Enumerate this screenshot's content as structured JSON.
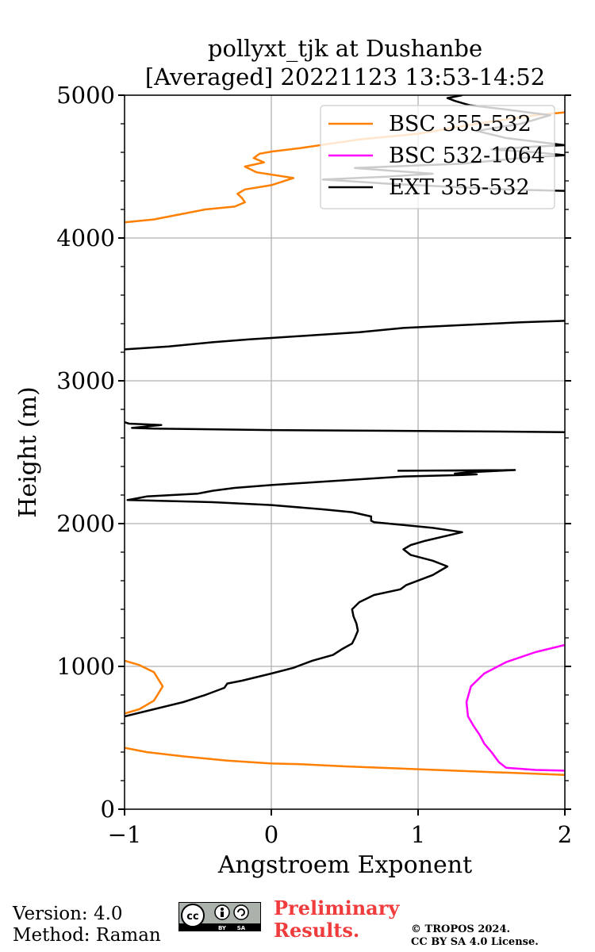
{
  "chart_data": {
    "type": "line",
    "title": [
      "pollyxt_tjk at Dushanbe",
      "[Averaged] 20221123 13:53-14:52"
    ],
    "xlabel": "Angstroem Exponent",
    "ylabel": "Height (m)",
    "xlim": [
      -1,
      2
    ],
    "ylim": [
      0,
      5000
    ],
    "xticks": [
      -1,
      0,
      1,
      2
    ],
    "xtick_labels": [
      "−1",
      "0",
      "1",
      "2"
    ],
    "yticks": [
      0,
      1000,
      2000,
      3000,
      4000,
      5000
    ],
    "ytick_labels": [
      "0",
      "1000",
      "2000",
      "3000",
      "4000",
      "5000"
    ],
    "grid": true,
    "legend_position": "top-right",
    "series": [
      {
        "name": "BSC 355-532",
        "color": "#ff8000",
        "segments": [
          [
            [
              2.0,
              240
            ],
            [
              1.5,
              260
            ],
            [
              1.0,
              280
            ],
            [
              0.5,
              300
            ],
            [
              0.2,
              315
            ],
            [
              0.0,
              320
            ],
            [
              -0.3,
              340
            ],
            [
              -0.6,
              370
            ],
            [
              -0.85,
              400
            ],
            [
              -1.0,
              430
            ]
          ],
          [
            [
              -1.0,
              670
            ],
            [
              -0.9,
              700
            ],
            [
              -0.8,
              760
            ],
            [
              -0.74,
              860
            ],
            [
              -0.8,
              960
            ],
            [
              -0.9,
              1010
            ],
            [
              -1.0,
              1040
            ]
          ],
          [
            [
              -1.0,
              4110
            ],
            [
              -0.8,
              4130
            ],
            [
              -0.6,
              4170
            ],
            [
              -0.45,
              4200
            ],
            [
              -0.25,
              4220
            ],
            [
              -0.18,
              4250
            ],
            [
              -0.2,
              4280
            ],
            [
              -0.23,
              4310
            ],
            [
              -0.18,
              4340
            ],
            [
              0.0,
              4370
            ],
            [
              0.15,
              4420
            ],
            [
              -0.1,
              4460
            ],
            [
              -0.18,
              4500
            ],
            [
              -0.05,
              4530
            ],
            [
              -0.12,
              4560
            ],
            [
              -0.08,
              4590
            ],
            [
              0.0,
              4605
            ],
            [
              0.2,
              4630
            ],
            [
              0.4,
              4660
            ],
            [
              0.6,
              4690
            ],
            [
              1.0,
              4730
            ],
            [
              1.4,
              4800
            ],
            [
              1.8,
              4860
            ],
            [
              2.0,
              4880
            ]
          ]
        ]
      },
      {
        "name": "BSC 532-1064",
        "color": "#ff00ff",
        "segments": [
          [
            [
              2.0,
              270
            ],
            [
              1.8,
              275
            ],
            [
              1.6,
              290
            ],
            [
              1.55,
              330
            ],
            [
              1.5,
              400
            ],
            [
              1.45,
              460
            ],
            [
              1.42,
              520
            ],
            [
              1.38,
              580
            ],
            [
              1.34,
              650
            ],
            [
              1.33,
              750
            ],
            [
              1.36,
              860
            ],
            [
              1.45,
              950
            ],
            [
              1.6,
              1030
            ],
            [
              1.8,
              1100
            ],
            [
              2.0,
              1150
            ]
          ]
        ]
      },
      {
        "name": "EXT 355-532",
        "color": "#000000",
        "segments": [
          [
            [
              -1.0,
              650
            ],
            [
              -0.8,
              700
            ],
            [
              -0.6,
              750
            ],
            [
              -0.45,
              800
            ],
            [
              -0.32,
              850
            ],
            [
              -0.3,
              880
            ],
            [
              -0.2,
              900
            ],
            [
              0.0,
              950
            ],
            [
              0.15,
              990
            ],
            [
              0.28,
              1040
            ],
            [
              0.42,
              1080
            ],
            [
              0.48,
              1120
            ],
            [
              0.55,
              1160
            ],
            [
              0.57,
              1200
            ],
            [
              0.59,
              1250
            ],
            [
              0.58,
              1300
            ],
            [
              0.56,
              1350
            ],
            [
              0.55,
              1400
            ],
            [
              0.6,
              1450
            ],
            [
              0.7,
              1500
            ],
            [
              0.88,
              1540
            ],
            [
              0.92,
              1570
            ],
            [
              1.1,
              1640
            ],
            [
              1.2,
              1700
            ],
            [
              1.1,
              1740
            ],
            [
              0.95,
              1780
            ],
            [
              0.9,
              1820
            ],
            [
              0.95,
              1850
            ],
            [
              1.05,
              1880
            ],
            [
              1.3,
              1940
            ],
            [
              1.1,
              1970
            ],
            [
              0.9,
              1990
            ],
            [
              0.7,
              2010
            ],
            [
              0.68,
              2020
            ],
            [
              0.68,
              2050
            ],
            [
              0.55,
              2080
            ],
            [
              0.35,
              2100
            ],
            [
              0.0,
              2130
            ],
            [
              -0.4,
              2150
            ],
            [
              -0.98,
              2165
            ],
            [
              -0.9,
              2180
            ],
            [
              -0.85,
              2190
            ],
            [
              -0.5,
              2210
            ],
            [
              -0.4,
              2230
            ],
            [
              -0.25,
              2250
            ],
            [
              0.0,
              2270
            ],
            [
              0.3,
              2290
            ],
            [
              0.75,
              2320
            ],
            [
              0.9,
              2330
            ],
            [
              1.3,
              2340
            ],
            [
              1.4,
              2345
            ],
            [
              1.25,
              2350
            ],
            [
              1.35,
              2360
            ],
            [
              1.66,
              2375
            ],
            [
              0.86,
              2370
            ]
          ],
          [
            [
              2.0,
              2640
            ],
            [
              1.5,
              2645
            ],
            [
              0.8,
              2650
            ],
            [
              0.0,
              2655
            ],
            [
              -0.8,
              2665
            ],
            [
              -0.95,
              2670
            ],
            [
              -0.75,
              2690
            ],
            [
              -0.97,
              2700
            ],
            [
              -1.0,
              2710
            ]
          ],
          [
            [
              -1.0,
              3220
            ],
            [
              -0.7,
              3240
            ],
            [
              -0.4,
              3270
            ],
            [
              -0.15,
              3290
            ],
            [
              0.0,
              3300
            ],
            [
              0.3,
              3320
            ],
            [
              0.6,
              3340
            ],
            [
              0.9,
              3370
            ],
            [
              1.3,
              3390
            ],
            [
              1.7,
              3410
            ],
            [
              2.0,
              3420
            ]
          ]
        ]
      },
      {
        "name": "EXT 355-532 (noisy top)",
        "color": "#000000",
        "legend": false,
        "segments": [
          [
            [
              2.0,
              4330
            ],
            [
              1.6,
              4340
            ],
            [
              1.2,
              4360
            ],
            [
              0.8,
              4380
            ],
            [
              0.5,
              4400
            ],
            [
              0.35,
              4410
            ],
            [
              0.8,
              4430
            ],
            [
              1.1,
              4450
            ],
            [
              0.7,
              4480
            ],
            [
              0.57,
              4490
            ],
            [
              0.8,
              4500
            ],
            [
              1.3,
              4520
            ],
            [
              1.7,
              4560
            ],
            [
              2.0,
              4580
            ],
            [
              1.8,
              4600
            ],
            [
              1.5,
              4620
            ],
            [
              1.8,
              4640
            ],
            [
              2.0,
              4650
            ],
            [
              1.6,
              4700
            ],
            [
              1.4,
              4750
            ],
            [
              1.7,
              4800
            ],
            [
              1.9,
              4860
            ],
            [
              1.6,
              4900
            ],
            [
              1.35,
              4930
            ],
            [
              1.25,
              4960
            ],
            [
              1.2,
              4980
            ],
            [
              1.3,
              5000
            ]
          ]
        ]
      }
    ]
  },
  "footer": {
    "version": "Version: 4.0",
    "method": "Method: Raman",
    "preliminary": [
      "Preliminary",
      "Results."
    ],
    "copyright": [
      "© TROPOS 2024.",
      "CC BY SA 4.0 License."
    ],
    "license_badge": [
      "BY",
      "SA"
    ]
  }
}
